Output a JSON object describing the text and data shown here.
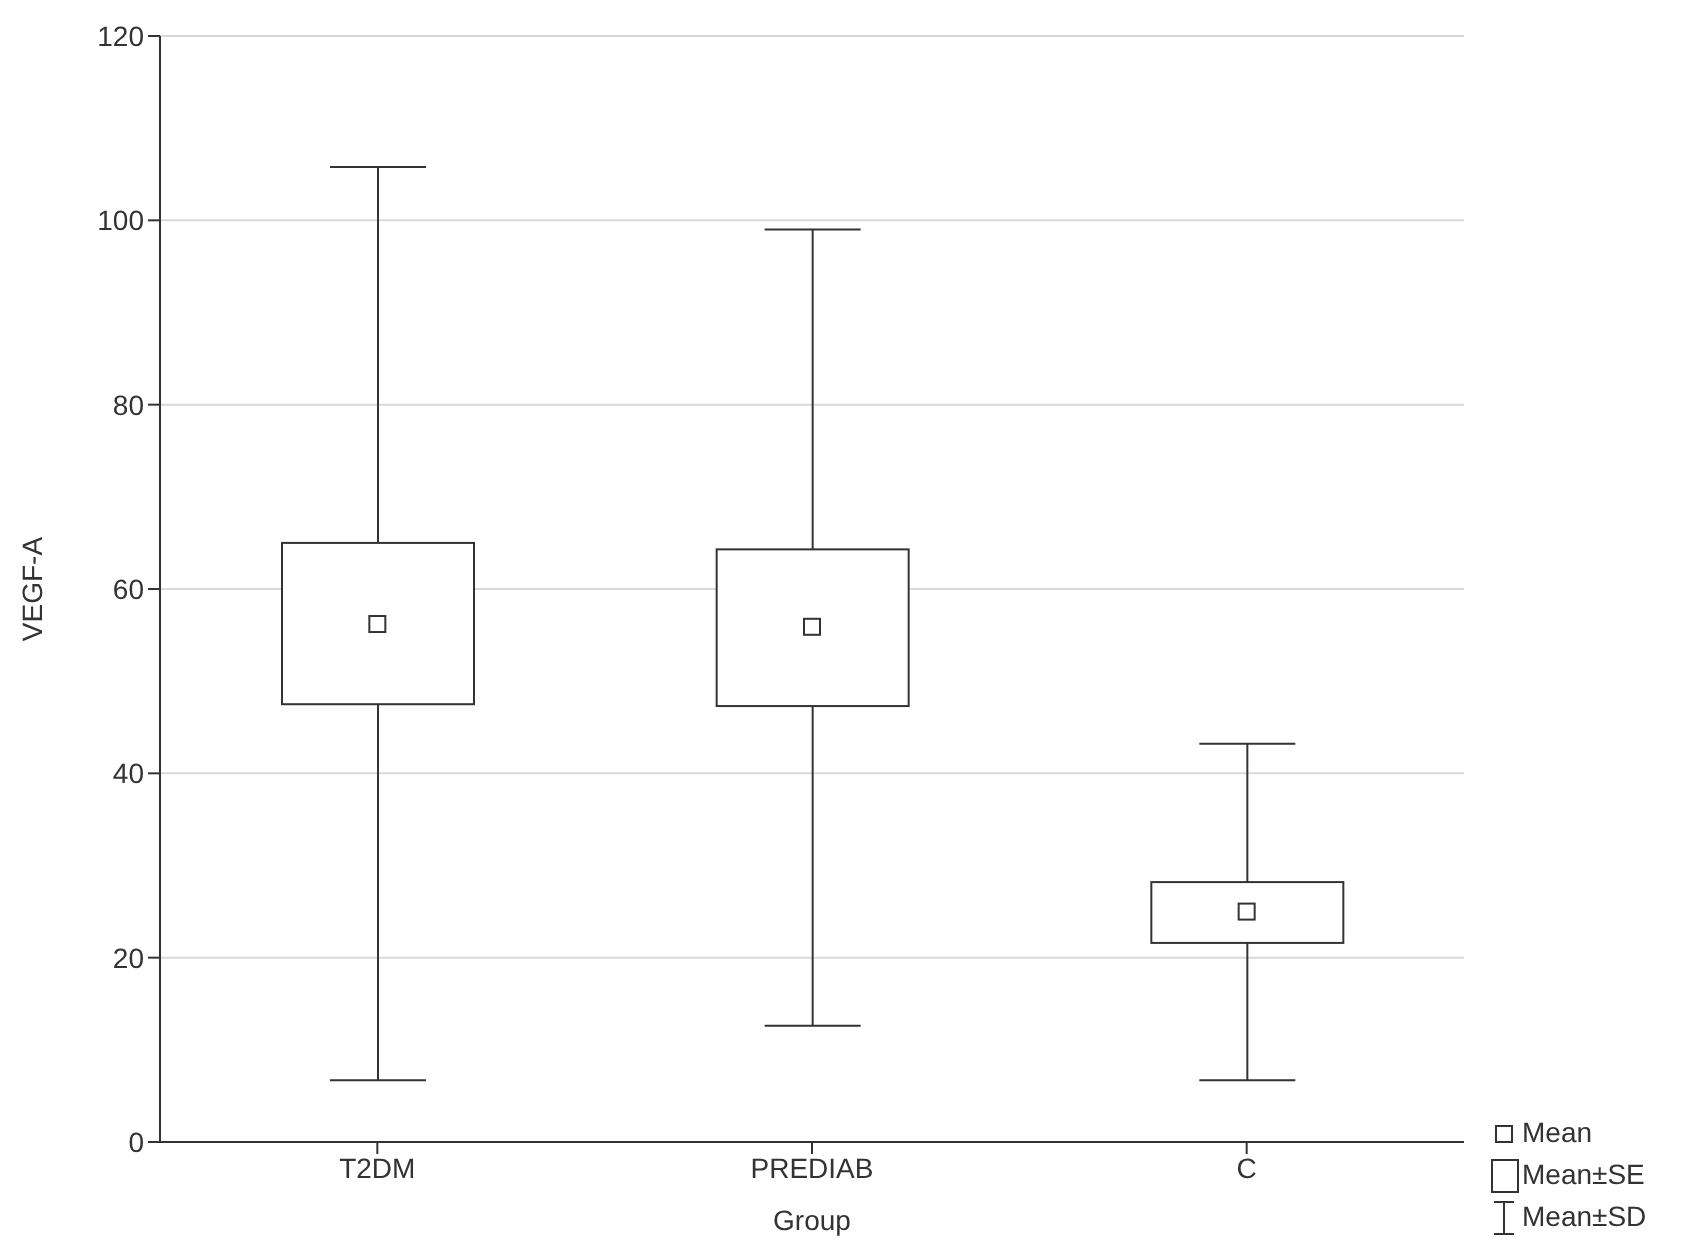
{
  "chart_data": {
    "type": "box",
    "xlabel": "Group",
    "ylabel": "VEGF-A",
    "categories": [
      "T2DM",
      "PREDIAB",
      "C"
    ],
    "boxes": [
      {
        "low": 6.7,
        "q1": 47.5,
        "q3": 65,
        "high": 105.8,
        "mean": 56.2
      },
      {
        "low": 12.6,
        "q1": 47.3,
        "q3": 64.3,
        "high": 99,
        "mean": 55.9
      },
      {
        "low": 6.7,
        "q1": 21.6,
        "q3": 28.2,
        "high": 43.2,
        "mean": 25
      }
    ],
    "ylim": [
      0,
      120
    ],
    "yticks": [
      0,
      20,
      40,
      60,
      80,
      100,
      120
    ],
    "grid": "y",
    "annotations": [
      "Mean",
      "Mean±SE",
      "Mean±SD"
    ]
  }
}
